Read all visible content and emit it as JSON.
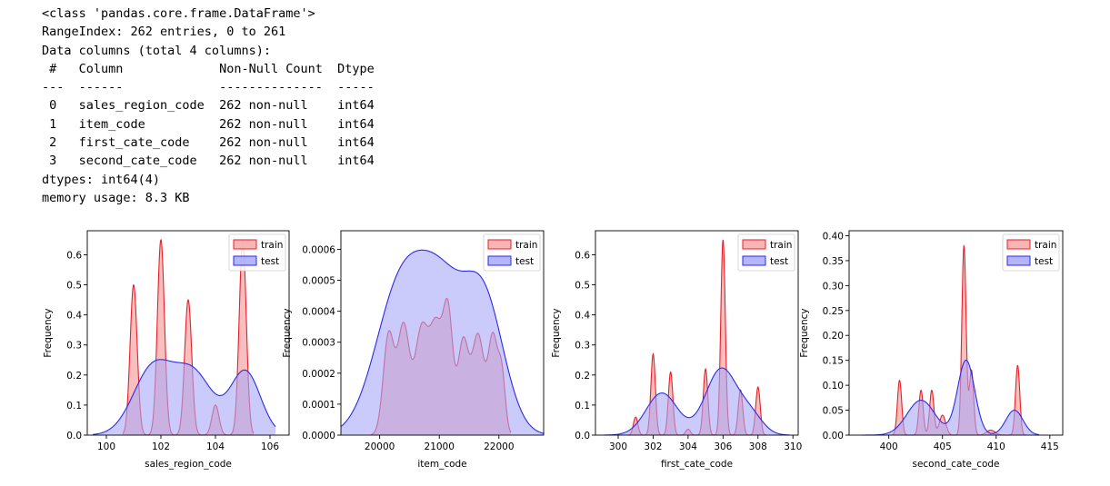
{
  "info_lines": [
    "<class 'pandas.core.frame.DataFrame'>",
    "RangeIndex: 262 entries, 0 to 261",
    "Data columns (total 4 columns):",
    " #   Column             Non-Null Count  Dtype",
    "---  ------             --------------  -----",
    " 0   sales_region_code  262 non-null    int64",
    " 1   item_code          262 non-null    int64",
    " 2   first_cate_code    262 non-null    int64",
    " 3   second_cate_code   262 non-null    int64",
    "dtypes: int64(4)",
    "memory usage: 8.3 KB"
  ],
  "colors": {
    "train_fill": "#f7a8a8",
    "train_line": "#e8202a",
    "test_fill": "#a8a8f8",
    "test_line": "#2a2af0"
  },
  "chart_data": [
    {
      "type": "area",
      "xlabel": "sales_region_code",
      "ylabel": "Frequency",
      "xlim": [
        99.3,
        106.7
      ],
      "ylim": [
        0,
        0.68
      ],
      "xticks": [
        100,
        102,
        104,
        106
      ],
      "xtick_labels": [
        "100",
        "102",
        "104",
        "106"
      ],
      "yticks": [
        0,
        0.1,
        0.2,
        0.3,
        0.4,
        0.5,
        0.6
      ],
      "ytick_labels": [
        "0.0",
        "0.1",
        "0.2",
        "0.3",
        "0.4",
        "0.5",
        "0.6"
      ],
      "legend": [
        "train",
        "test"
      ],
      "series": [
        {
          "name": "train",
          "peaks": [
            [
              101,
              0.5,
              0.13
            ],
            [
              102,
              0.65,
              0.13
            ],
            [
              103,
              0.45,
              0.13
            ],
            [
              104,
              0.1,
              0.13
            ],
            [
              105,
              0.65,
              0.13
            ]
          ],
          "range": [
            100.6,
            105.4
          ]
        },
        {
          "name": "test",
          "peaks": [
            [
              101.7,
              0.22,
              0.72
            ],
            [
              103.2,
              0.2,
              0.72
            ],
            [
              105.1,
              0.21,
              0.55
            ]
          ],
          "range": [
            99.5,
            106.2
          ]
        }
      ]
    },
    {
      "type": "area",
      "xlabel": "item_code",
      "ylabel": "Frequency",
      "xlim": [
        19350,
        22750
      ],
      "ylim": [
        0,
        0.00066
      ],
      "xticks": [
        20000,
        21000,
        22000
      ],
      "xtick_labels": [
        "20000",
        "21000",
        "22000"
      ],
      "yticks": [
        0,
        0.0001,
        0.0002,
        0.0003,
        0.0004,
        0.0005,
        0.0006
      ],
      "ytick_labels": [
        "0.0000",
        "0.0001",
        "0.0002",
        "0.0003",
        "0.0004",
        "0.0005",
        "0.0006"
      ],
      "legend": [
        "train",
        "test"
      ],
      "series": [
        {
          "name": "train",
          "peaks": [
            [
              20150,
              0.00032,
              90
            ],
            [
              20400,
              0.00035,
              100
            ],
            [
              20700,
              0.00033,
              110
            ],
            [
              20950,
              0.00034,
              110
            ],
            [
              21150,
              0.00036,
              80
            ],
            [
              21400,
              0.0003,
              90
            ],
            [
              21650,
              0.00032,
              100
            ],
            [
              21900,
              0.00031,
              80
            ],
            [
              22050,
              0.00018,
              60
            ]
          ],
          "range": [
            19850,
            22200
          ]
        },
        {
          "name": "test",
          "peaks": [
            [
              20350,
              0.00047,
              420
            ],
            [
              21050,
              0.0004,
              380
            ],
            [
              21750,
              0.00042,
              340
            ]
          ],
          "range": [
            19350,
            22750
          ]
        }
      ]
    },
    {
      "type": "area",
      "xlabel": "first_cate_code",
      "ylabel": "Frequency",
      "xlim": [
        298.7,
        310.3
      ],
      "ylim": [
        0,
        0.68
      ],
      "xticks": [
        300,
        302,
        304,
        306,
        308,
        310
      ],
      "xtick_labels": [
        "300",
        "302",
        "304",
        "306",
        "308",
        "310"
      ],
      "yticks": [
        0,
        0.1,
        0.2,
        0.3,
        0.4,
        0.5,
        0.6
      ],
      "ytick_labels": [
        "0.0",
        "0.1",
        "0.2",
        "0.3",
        "0.4",
        "0.5",
        "0.6"
      ],
      "legend": [
        "train",
        "test"
      ],
      "series": [
        {
          "name": "train",
          "peaks": [
            [
              301,
              0.06,
              0.13
            ],
            [
              302,
              0.27,
              0.13
            ],
            [
              303,
              0.21,
              0.13
            ],
            [
              304,
              0.02,
              0.13
            ],
            [
              305,
              0.22,
              0.13
            ],
            [
              306,
              0.65,
              0.13
            ],
            [
              307,
              0.15,
              0.13
            ],
            [
              308,
              0.16,
              0.13
            ]
          ],
          "range": [
            300.5,
            308.5
          ]
        },
        {
          "name": "test",
          "peaks": [
            [
              302.5,
              0.14,
              0.9
            ],
            [
              305.9,
              0.22,
              0.9
            ],
            [
              307.6,
              0.06,
              0.7
            ]
          ],
          "range": [
            299.2,
            309.8
          ]
        }
      ]
    },
    {
      "type": "area",
      "xlabel": "second_cate_code",
      "ylabel": "Frequency",
      "xlim": [
        396.3,
        416.2
      ],
      "ylim": [
        0,
        0.41
      ],
      "xticks": [
        400,
        405,
        410,
        415
      ],
      "xtick_labels": [
        "400",
        "405",
        "410",
        "415"
      ],
      "yticks": [
        0,
        0.05,
        0.1,
        0.15,
        0.2,
        0.25,
        0.3,
        0.35,
        0.4
      ],
      "ytick_labels": [
        "0.00",
        "0.05",
        "0.10",
        "0.15",
        "0.20",
        "0.25",
        "0.30",
        "0.35",
        "0.40"
      ],
      "legend": [
        "train",
        "test"
      ],
      "series": [
        {
          "name": "train",
          "peaks": [
            [
              401,
              0.11,
              0.2
            ],
            [
              403,
              0.09,
              0.2
            ],
            [
              404,
              0.09,
              0.2
            ],
            [
              405,
              0.04,
              0.3
            ],
            [
              407,
              0.38,
              0.2
            ],
            [
              407.7,
              0.13,
              0.2
            ],
            [
              409.5,
              0.01,
              0.4
            ],
            [
              412,
              0.14,
              0.2
            ]
          ],
          "range": [
            400.3,
            412.8
          ]
        },
        {
          "name": "test",
          "peaks": [
            [
              403,
              0.07,
              1.3
            ],
            [
              407.2,
              0.15,
              0.8
            ],
            [
              411.7,
              0.05,
              0.8
            ]
          ],
          "range": [
            397.5,
            414
          ]
        }
      ]
    }
  ]
}
